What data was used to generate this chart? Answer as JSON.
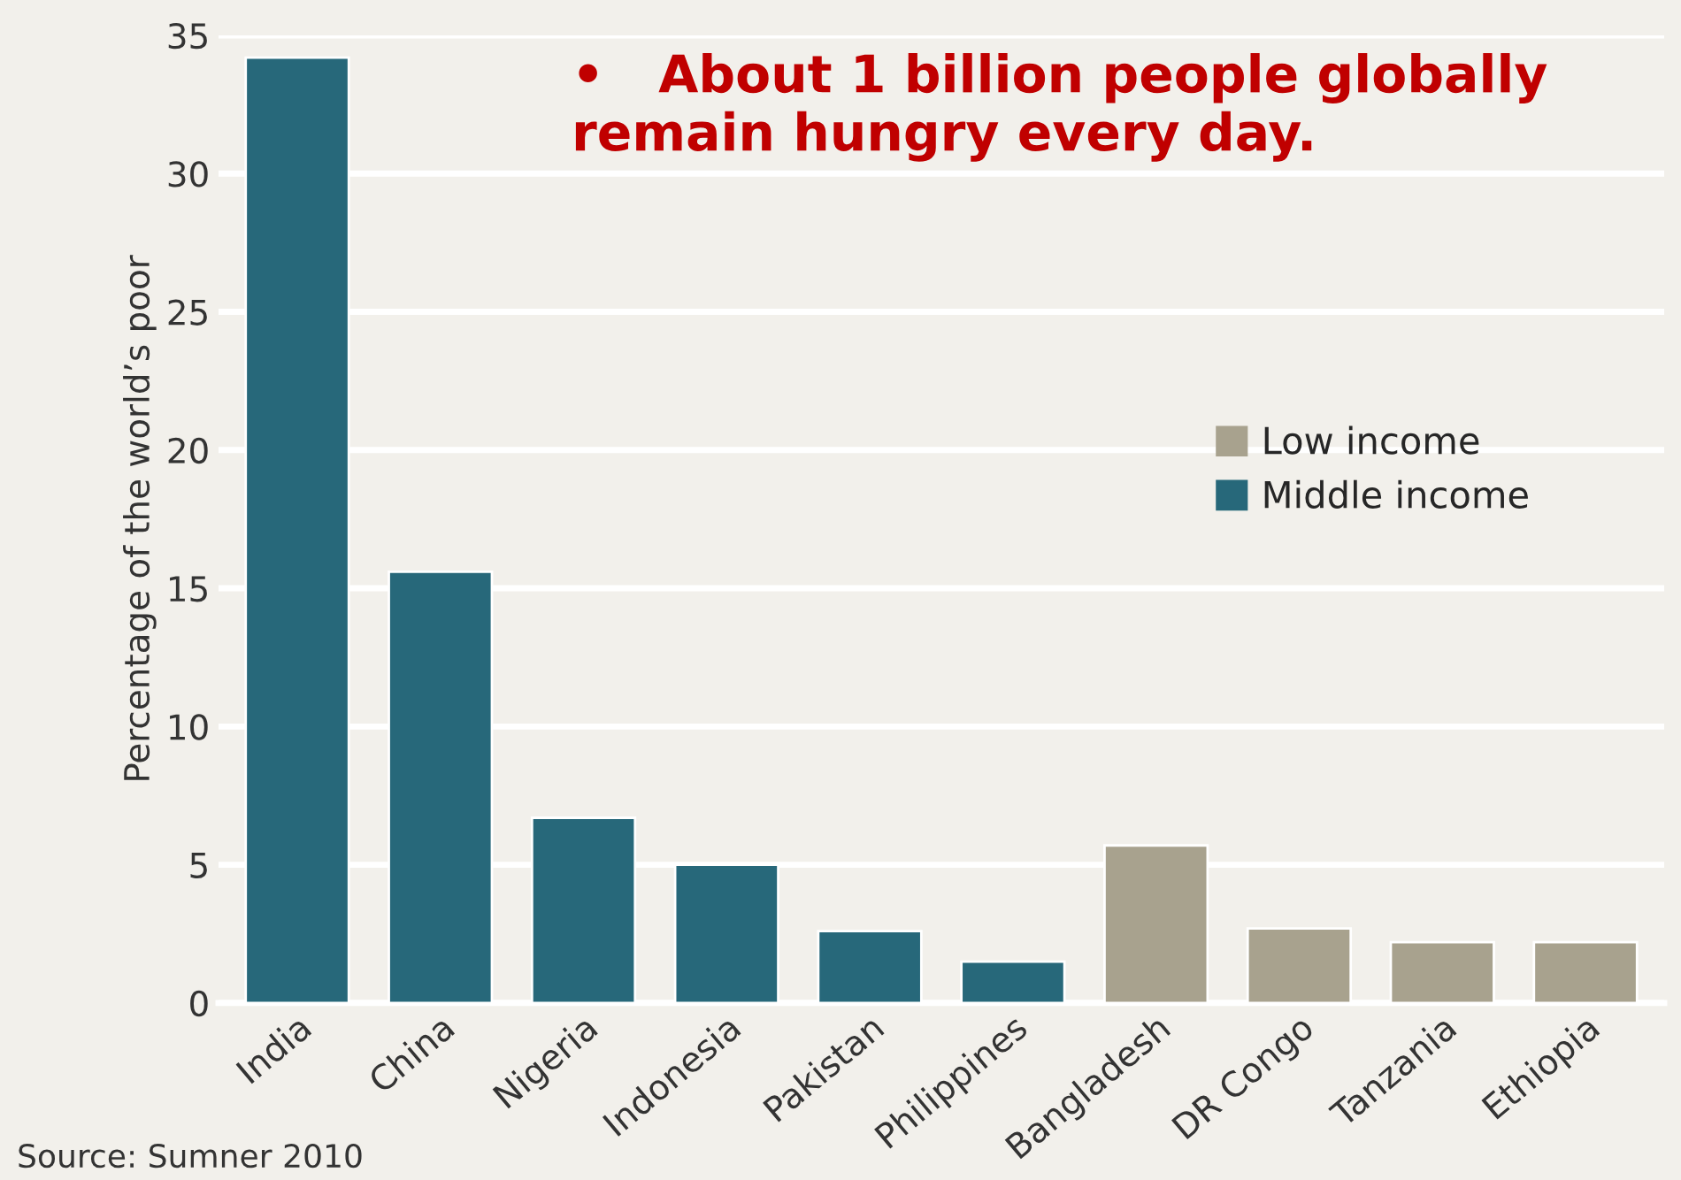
{
  "chart_data": {
    "type": "bar",
    "ylabel": "Percentage of the world’s poor",
    "categories": [
      "India",
      "China",
      "Nigeria",
      "Indonesia",
      "Pakistan",
      "Philippines",
      "Bangladesh",
      "DR Congo",
      "Tanzania",
      "Ethiopia"
    ],
    "series": [
      {
        "name": "Low income",
        "color": "#a8a28e",
        "values": [
          null,
          null,
          null,
          null,
          null,
          null,
          5.7,
          2.7,
          2.2,
          2.2
        ]
      },
      {
        "name": "Middle income",
        "color": "#27687a",
        "values": [
          34.2,
          15.6,
          6.7,
          5.0,
          2.6,
          1.5,
          null,
          null,
          null,
          null
        ]
      }
    ],
    "ylim": [
      0,
      35
    ],
    "yticks": [
      0,
      5,
      10,
      15,
      20,
      25,
      30,
      35
    ],
    "grid": "y",
    "legend": "right",
    "annotations": [
      "•   About 1 billion people globally remain hungry every day.",
      "Source: Sumner 2010"
    ]
  }
}
